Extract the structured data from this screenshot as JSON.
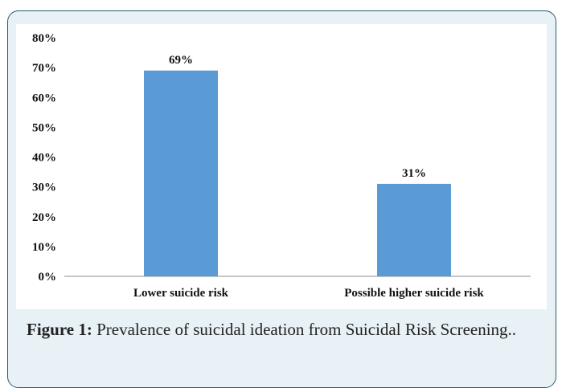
{
  "colors": {
    "bar": "#5b9bd5",
    "frame_border": "#2a5c73",
    "frame_bg": "#e8f1f5"
  },
  "figure": {
    "label": "Figure 1:",
    "caption": "Prevalence of suicidal ideation from Suicidal Risk Screening.."
  },
  "chart_data": {
    "type": "bar",
    "categories": [
      "Lower suicide risk",
      "Possible higher suicide risk"
    ],
    "values": [
      69,
      31
    ],
    "value_labels": [
      "69%",
      "31%"
    ],
    "ylim": [
      0,
      80
    ],
    "yticks": [
      0,
      10,
      20,
      30,
      40,
      50,
      60,
      70,
      80
    ],
    "ytick_labels": [
      "0%",
      "10%",
      "20%",
      "30%",
      "40%",
      "50%",
      "60%",
      "70%",
      "80%"
    ],
    "grid": false,
    "title": "",
    "xlabel": "",
    "ylabel": ""
  }
}
